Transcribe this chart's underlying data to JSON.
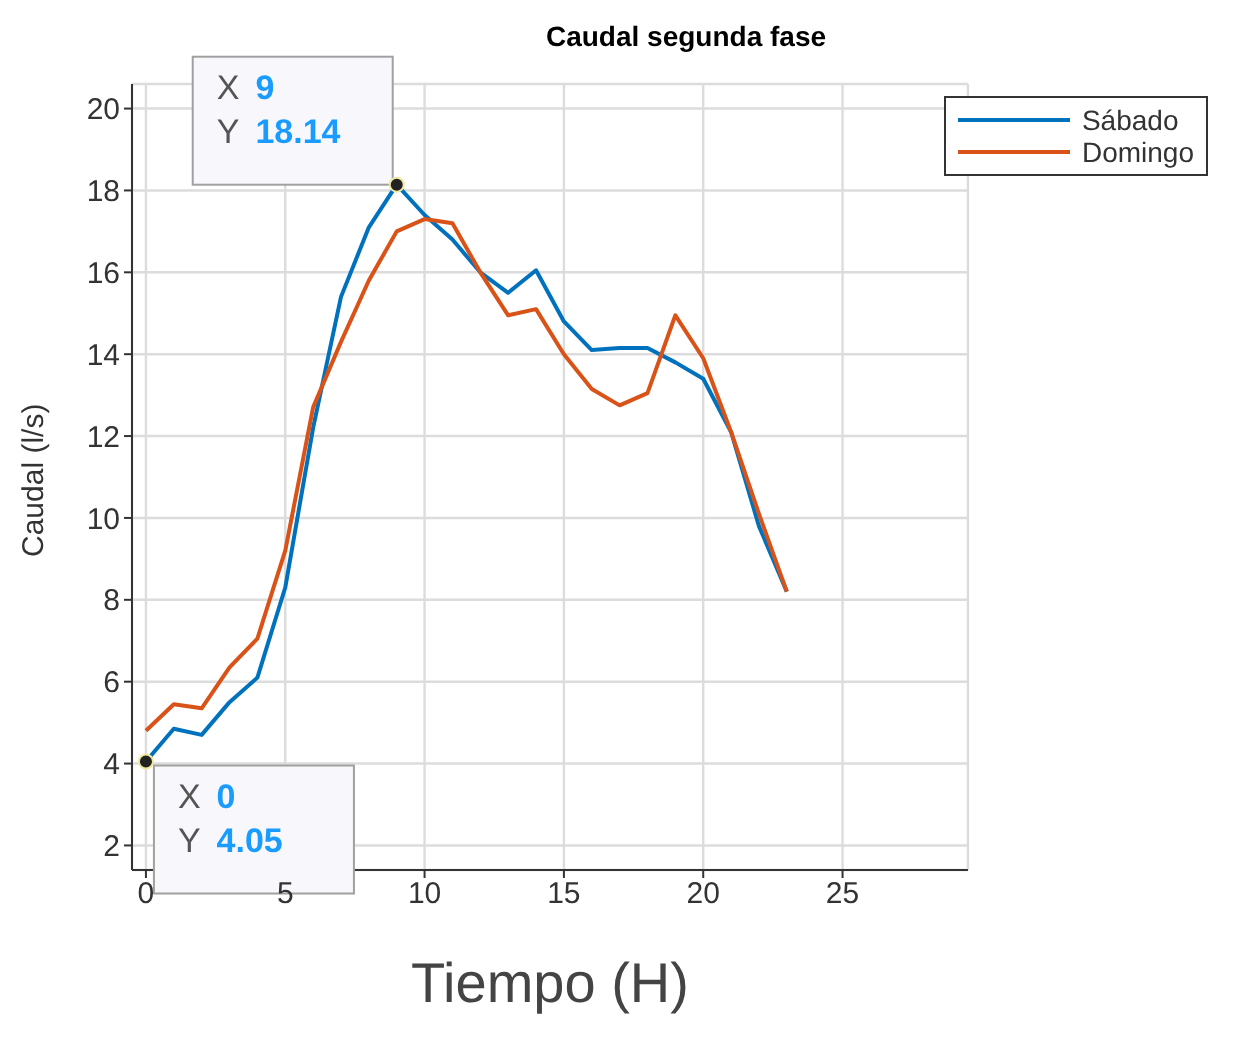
{
  "chart_data": {
    "type": "line",
    "title": "Caudal segunda fase",
    "xlabel": "Tiempo (H)",
    "ylabel": "Caudal (l/s)",
    "x": [
      0,
      1,
      2,
      3,
      4,
      5,
      6,
      7,
      8,
      9,
      10,
      11,
      12,
      13,
      14,
      15,
      16,
      17,
      18,
      19,
      20,
      21,
      22,
      23
    ],
    "series": [
      {
        "name": "Sábado",
        "color": "#0072bd",
        "values": [
          4.05,
          4.85,
          4.7,
          5.5,
          6.1,
          8.3,
          12.2,
          15.4,
          17.1,
          18.14,
          17.4,
          16.8,
          16.0,
          15.5,
          16.05,
          14.8,
          14.1,
          14.15,
          14.15,
          13.8,
          13.4,
          12.1,
          9.8,
          8.2
        ]
      },
      {
        "name": "Domingo",
        "color": "#d95319",
        "values": [
          4.8,
          5.45,
          5.35,
          6.35,
          7.05,
          9.2,
          12.7,
          14.3,
          15.8,
          17.0,
          17.3,
          17.2,
          16.0,
          14.95,
          15.1,
          14.0,
          13.15,
          12.75,
          13.05,
          14.95,
          13.9,
          12.1,
          10.1,
          8.2
        ]
      }
    ],
    "xlim": [
      -0.5,
      29.5
    ],
    "xticks": [
      0,
      5,
      10,
      15,
      20,
      25
    ],
    "ylim": [
      1.4,
      20.6
    ],
    "yticks": [
      2,
      4,
      6,
      8,
      10,
      12,
      14,
      16,
      18,
      20
    ],
    "grid": true,
    "legend": "top right",
    "marker": "none",
    "line_style": "solid",
    "annotations": [
      {
        "text": "X 9\nY 18.14",
        "x": 9,
        "y": 18.14
      },
      {
        "text": "X 0\nY 4.05",
        "x": 0,
        "y": 4.05
      }
    ]
  }
}
